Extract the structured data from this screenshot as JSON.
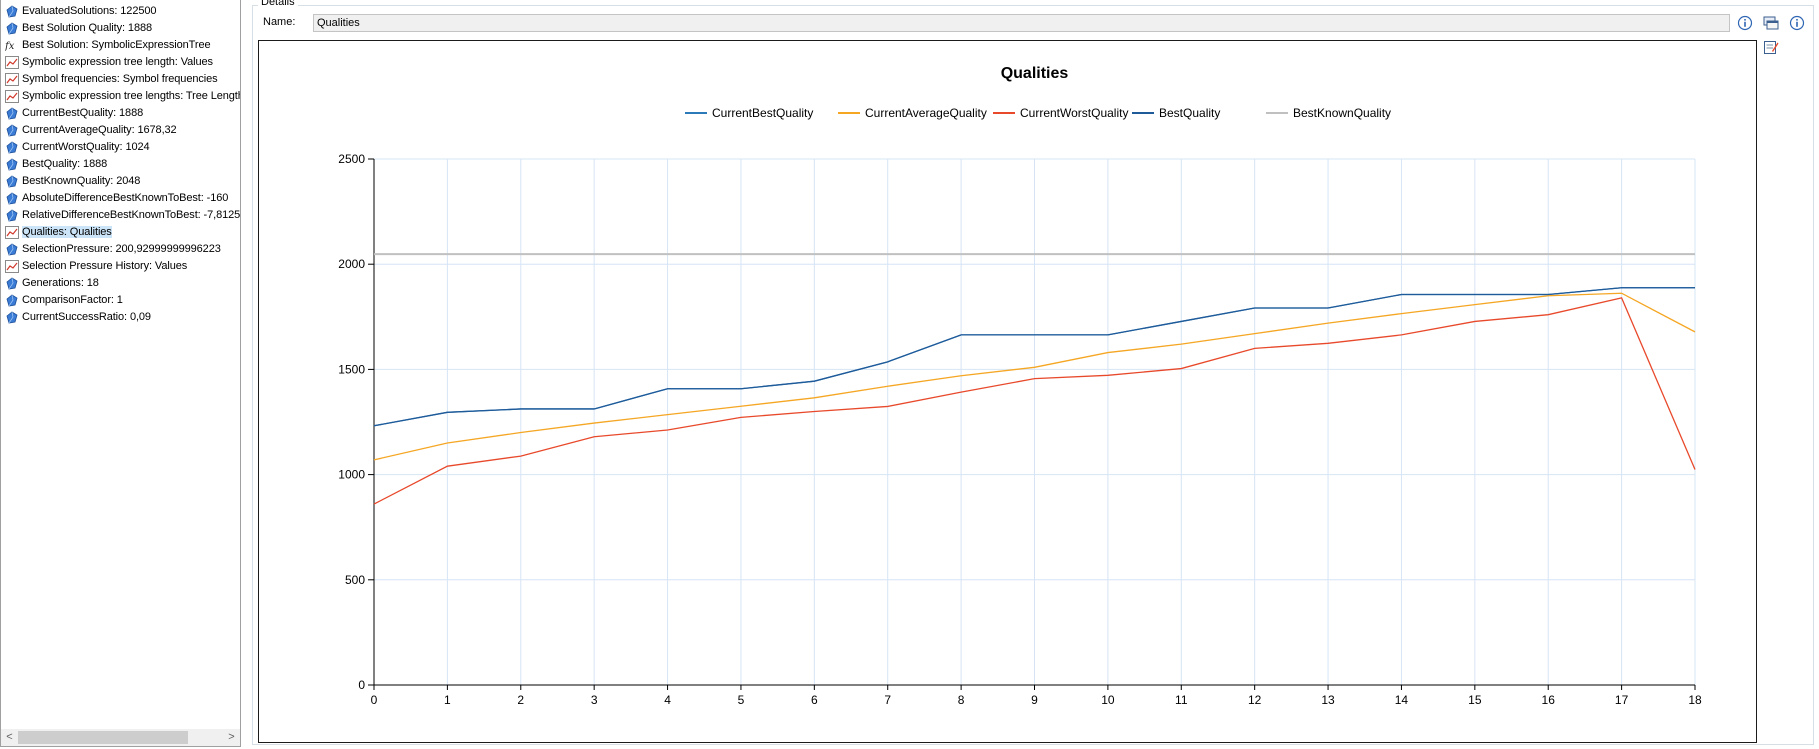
{
  "results": [
    {
      "icon": "value-icon",
      "label": "EvaluatedSolutions: 122500"
    },
    {
      "icon": "value-icon",
      "label": "Best Solution Quality: 1888"
    },
    {
      "icon": "function-icon",
      "label": "Best Solution: SymbolicExpressionTree"
    },
    {
      "icon": "line-chart-icon",
      "label": "Symbolic expression tree length: Values"
    },
    {
      "icon": "line-chart-icon",
      "label": "Symbol frequencies: Symbol frequencies"
    },
    {
      "icon": "line-chart-icon",
      "label": "Symbolic expression tree lengths: Tree Length"
    },
    {
      "icon": "value-icon",
      "label": "CurrentBestQuality: 1888"
    },
    {
      "icon": "value-icon",
      "label": "CurrentAverageQuality: 1678,32"
    },
    {
      "icon": "value-icon",
      "label": "CurrentWorstQuality: 1024"
    },
    {
      "icon": "value-icon",
      "label": "BestQuality: 1888"
    },
    {
      "icon": "value-icon",
      "label": "BestKnownQuality: 2048"
    },
    {
      "icon": "value-icon",
      "label": "AbsoluteDifferenceBestKnownToBest: -160"
    },
    {
      "icon": "value-icon",
      "label": "RelativeDifferenceBestKnownToBest: -7,8125"
    },
    {
      "icon": "line-chart-icon",
      "label": "Qualities: Qualities",
      "selected": true
    },
    {
      "icon": "value-icon",
      "label": "SelectionPressure: 200,92999999996223"
    },
    {
      "icon": "line-chart-icon",
      "label": "Selection Pressure History: Values"
    },
    {
      "icon": "value-icon",
      "label": "Generations: 18"
    },
    {
      "icon": "value-icon",
      "label": "ComparisonFactor: 1"
    },
    {
      "icon": "value-icon",
      "label": "CurrentSuccessRatio: 0,09"
    }
  ],
  "scrollbar": {
    "left_arrow": "<",
    "right_arrow": ">"
  },
  "details": {
    "group_label": "Details",
    "name_label": "Name:",
    "name_value": "Qualities",
    "icons": [
      "info-icon",
      "view-host-icon",
      "info-icon",
      "edit-icon"
    ]
  },
  "colors": {
    "CurrentBestQuality": "#2b7bb9",
    "CurrentAverageQuality": "#f5a623",
    "CurrentWorstQuality": "#e8492b",
    "BestQuality": "#1f5a99",
    "BestKnownQuality": "#c0c0c0",
    "grid": "#d6e4f5"
  },
  "chart_data": {
    "type": "line",
    "title": "Qualities",
    "xlabel": "",
    "ylabel": "",
    "x": [
      0,
      1,
      2,
      3,
      4,
      5,
      6,
      7,
      8,
      9,
      10,
      11,
      12,
      13,
      14,
      15,
      16,
      17,
      18
    ],
    "xlim": [
      0,
      18
    ],
    "ylim": [
      0,
      2500
    ],
    "yticks": [
      0,
      500,
      1000,
      1500,
      2000,
      2500
    ],
    "grid": true,
    "legend_position": "top-center",
    "series": [
      {
        "name": "CurrentBestQuality",
        "values": [
          1232,
          1296,
          1312,
          1312,
          1408,
          1408,
          1444,
          1536,
          1664,
          1664,
          1664,
          1728,
          1792,
          1792,
          1856,
          1856,
          1856,
          1888,
          1888
        ]
      },
      {
        "name": "CurrentAverageQuality",
        "values": [
          1070,
          1150,
          1200,
          1245,
          1285,
          1325,
          1365,
          1420,
          1470,
          1510,
          1580,
          1620,
          1670,
          1720,
          1765,
          1808,
          1850,
          1862,
          1678.32
        ]
      },
      {
        "name": "CurrentWorstQuality",
        "values": [
          860,
          1040,
          1088,
          1180,
          1212,
          1272,
          1300,
          1324,
          1392,
          1456,
          1472,
          1504,
          1600,
          1624,
          1664,
          1728,
          1760,
          1840,
          1024
        ]
      },
      {
        "name": "BestQuality",
        "values": [
          1232,
          1296,
          1312,
          1312,
          1408,
          1408,
          1444,
          1536,
          1664,
          1664,
          1664,
          1728,
          1792,
          1792,
          1856,
          1856,
          1856,
          1888,
          1888
        ]
      },
      {
        "name": "BestKnownQuality",
        "values": [
          2048,
          2048,
          2048,
          2048,
          2048,
          2048,
          2048,
          2048,
          2048,
          2048,
          2048,
          2048,
          2048,
          2048,
          2048,
          2048,
          2048,
          2048,
          2048
        ]
      }
    ]
  }
}
